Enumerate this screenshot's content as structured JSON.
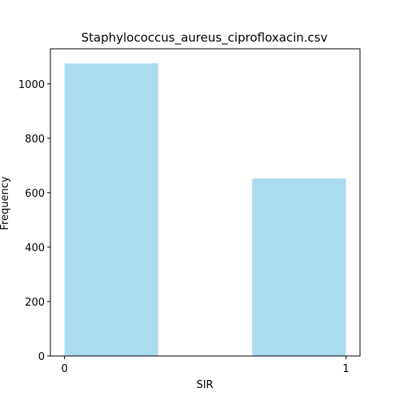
{
  "chart_data": {
    "type": "bar",
    "title": "Staphylococcus_aureus_ciprofloxacin.csv",
    "xlabel": "SIR",
    "ylabel": "Frequency",
    "bars": [
      {
        "x_start": 0.0,
        "x_end": 0.333,
        "value": 1075
      },
      {
        "x_start": 0.667,
        "x_end": 1.0,
        "value": 652
      }
    ],
    "x_ticks": [
      0,
      1
    ],
    "y_ticks": [
      0,
      200,
      400,
      600,
      800,
      1000
    ],
    "xlim": [
      -0.05,
      1.05
    ],
    "ylim": [
      0,
      1128.75
    ],
    "grid": false,
    "bar_color": "#abdcef"
  }
}
